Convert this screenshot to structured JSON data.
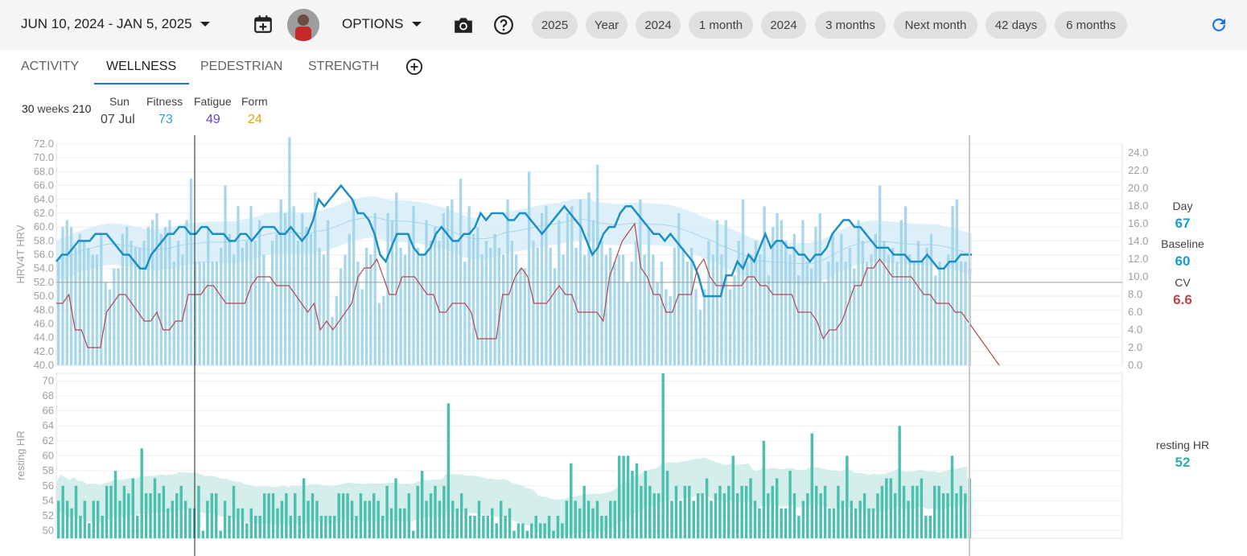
{
  "header": {
    "date_range": "JUN 10, 2024 - JAN 5, 2025",
    "options_label": "OPTIONS",
    "icons": [
      "calendar-add-icon",
      "camera-icon",
      "help-icon",
      "refresh-icon"
    ],
    "chips": [
      "2025",
      "Year",
      "2024",
      "1 month",
      "2024",
      "3 months",
      "Next month",
      "42 days",
      "6 months"
    ],
    "accent_color": "#1a73e8"
  },
  "tabs": {
    "items": [
      "ACTIVITY",
      "WELLNESS",
      "PEDESTRIAN",
      "STRENGTH"
    ],
    "active": "WELLNESS"
  },
  "summary": {
    "weeks_num": "30",
    "weeks_label": "weeks",
    "days": "210",
    "day_name": "Sun",
    "date": "07 Jul",
    "fitness_label": "Fitness",
    "fitness_value": "73",
    "fatigue_label": "Fatigue",
    "fatigue_value": "49",
    "form_label": "Form",
    "form_value": "24",
    "colors": {
      "fitness": "#29a7d9",
      "fatigue": "#6a3fc8",
      "form": "#e0a500"
    }
  },
  "legend": {
    "day_label": "Day",
    "day_value": "67",
    "baseline_label": "Baseline",
    "baseline_value": "60",
    "cv_label": "CV",
    "cv_value": "6.6",
    "rhr_label": "resting HR",
    "rhr_value": "52",
    "colors": {
      "day": "#1a9bc9",
      "baseline": "#1a9bc9",
      "cv": "#b04a4a",
      "rhr": "#2ab3a3"
    }
  },
  "chart_data": [
    {
      "type": "bar",
      "ylabel": "HRV4T HRV",
      "ylim": [
        40,
        72
      ],
      "y_ticks": [
        "40.0",
        "42.0",
        "44.0",
        "46.0",
        "48.0",
        "50.0",
        "52.0",
        "54.0",
        "56.0",
        "58.0",
        "60.0",
        "62.0",
        "64.0",
        "66.0",
        "68.0",
        "70.0",
        "72.0"
      ],
      "y2lim": [
        0,
        24
      ],
      "y2_ticks": [
        "0.0",
        "2.0",
        "4.0",
        "6.0",
        "8.0",
        "10.0",
        "12.0",
        "14.0",
        "16.0",
        "18.0",
        "20.0",
        "22.0",
        "24.0"
      ],
      "grid": true,
      "series": [
        {
          "values": [
            55,
            60,
            61,
            60,
            57,
            59,
            58,
            57,
            56,
            56,
            59,
            52,
            51,
            54,
            54,
            59,
            60,
            58,
            57,
            57,
            58,
            60,
            61,
            62,
            59,
            60,
            61,
            55,
            58,
            56,
            61,
            67,
            55,
            55,
            55,
            60,
            55,
            55,
            57,
            66,
            59,
            56,
            63,
            57,
            58,
            63,
            58,
            61,
            56,
            52,
            58,
            59,
            64,
            62,
            73,
            63,
            58,
            62,
            60,
            59,
            65,
            57,
            56,
            61,
            47,
            50,
            54,
            56,
            59,
            64,
            55,
            51,
            57,
            56,
            62,
            49,
            50,
            62,
            61,
            65,
            57,
            56,
            59,
            63,
            57,
            56,
            61,
            58,
            60,
            58,
            62,
            63,
            64,
            58,
            67,
            55,
            63,
            59,
            60,
            56,
            58,
            57,
            59,
            57,
            56,
            64,
            58,
            56,
            54,
            54,
            68,
            58,
            57,
            62,
            63,
            57,
            54,
            61,
            56,
            62,
            63,
            57,
            64,
            56,
            65,
            61,
            69,
            58,
            56,
            57,
            55,
            56,
            56,
            52,
            55,
            58,
            64,
            56,
            60,
            56,
            52,
            55,
            51,
            50,
            57,
            62,
            57,
            55,
            57,
            51,
            48,
            51,
            58,
            56,
            61,
            56,
            61,
            51,
            53,
            58,
            64,
            55,
            56,
            58,
            56,
            63,
            53,
            60,
            62,
            61,
            58,
            56,
            59,
            53,
            61,
            55,
            54,
            60,
            62,
            52,
            55,
            59,
            55,
            59,
            55,
            57,
            54,
            61,
            58,
            55,
            56,
            59,
            66,
            58,
            56,
            57,
            55,
            61,
            63,
            56,
            55,
            58,
            55,
            57,
            59,
            53,
            55,
            54,
            56,
            63,
            64,
            55,
            55,
            54
          ]
        },
        {
          "values": [
            55,
            56,
            56,
            57,
            58,
            58,
            58,
            59,
            59,
            59,
            58,
            57,
            56,
            56,
            55,
            54,
            54,
            56,
            57,
            58,
            59,
            59,
            60,
            60,
            59,
            59,
            60,
            60,
            59,
            59,
            59,
            58,
            58,
            59,
            59,
            58,
            59,
            60,
            60,
            60,
            59,
            59,
            60,
            59,
            58,
            59,
            61,
            64,
            63,
            64,
            65,
            66,
            65,
            64,
            62,
            62,
            61,
            59,
            56,
            55,
            57,
            59,
            59,
            59,
            57,
            56,
            56,
            57,
            59,
            60,
            59,
            58,
            58,
            59,
            59,
            60,
            62,
            61,
            62,
            62,
            62,
            61,
            61,
            62,
            62,
            61,
            60,
            59,
            60,
            61,
            62,
            63,
            62,
            61,
            60,
            58,
            56,
            57,
            59,
            60,
            60,
            62,
            63,
            63,
            62,
            61,
            60,
            59,
            59,
            58,
            59,
            58,
            57,
            56,
            55,
            53,
            50,
            50,
            50,
            50,
            53,
            53,
            55,
            54,
            56,
            55,
            57,
            59,
            57,
            58,
            58,
            57,
            57,
            56,
            56,
            55,
            56,
            56,
            57,
            59,
            60,
            61,
            61,
            60,
            60,
            59,
            58,
            57,
            57,
            57,
            56,
            56,
            56,
            55,
            55,
            55,
            56,
            55,
            54,
            54,
            55,
            55,
            56,
            56,
            56
          ]
        },
        {
          "values": [
            7,
            7,
            8,
            4,
            4,
            2,
            2,
            2,
            6,
            7,
            8,
            8,
            7,
            6,
            5,
            5,
            6,
            4,
            4,
            5,
            5,
            8,
            8,
            8,
            9,
            9,
            8,
            7,
            7,
            7,
            7,
            9,
            10,
            10,
            10,
            9,
            9,
            9,
            8,
            7,
            6,
            7,
            4,
            5,
            4,
            5,
            6,
            7,
            10,
            11,
            11,
            12,
            10,
            8,
            8,
            10,
            10,
            10,
            9,
            8,
            8,
            6,
            6,
            7,
            7,
            7,
            6,
            3,
            3,
            3,
            3,
            8,
            8,
            10,
            11,
            10,
            7,
            7,
            7,
            8,
            9,
            8,
            8,
            6,
            6,
            6,
            6,
            5,
            10,
            12,
            14,
            15,
            16,
            11,
            10,
            8,
            8,
            6,
            6,
            8,
            8,
            8,
            11,
            12,
            10,
            9,
            9,
            9,
            9,
            9,
            10,
            10,
            9,
            9,
            8,
            8,
            8,
            8,
            6,
            6,
            6,
            5,
            3,
            4,
            4,
            5,
            7,
            9,
            9,
            11,
            11,
            12,
            11,
            10,
            10,
            10,
            10,
            9,
            8,
            8,
            7,
            7,
            7,
            6,
            6,
            5,
            4,
            3,
            2,
            1,
            0
          ]
        }
      ]
    },
    {
      "type": "bar",
      "ylabel": "resting HR",
      "ylim": [
        49,
        71
      ],
      "y_ticks": [
        "50",
        "52",
        "54",
        "56",
        "58",
        "60",
        "62",
        "64",
        "66",
        "68",
        "70"
      ],
      "grid": true,
      "series": [
        {
          "values": [
            54,
            56,
            54,
            53,
            56,
            52,
            54,
            51,
            54,
            54,
            52,
            56,
            56,
            58,
            54,
            56,
            55,
            57,
            52,
            61,
            55,
            55,
            57,
            55,
            56,
            53,
            54,
            55,
            56,
            54,
            53,
            53,
            56,
            50,
            54,
            55,
            55,
            50,
            54,
            52,
            56,
            53,
            53,
            51,
            53,
            52,
            52,
            55,
            55,
            55,
            53,
            54,
            55,
            52,
            55,
            52,
            57,
            54,
            55,
            54,
            52,
            52,
            52,
            52,
            55,
            55,
            55,
            54,
            52,
            55,
            54,
            54,
            55,
            54,
            52,
            56,
            53,
            57,
            53,
            53,
            55,
            50,
            56,
            58,
            54,
            55,
            56,
            54,
            56,
            67,
            54,
            53,
            55,
            53,
            52,
            52,
            54,
            52,
            52,
            53,
            51,
            54,
            52,
            53,
            50,
            51,
            51,
            50,
            51,
            52,
            51,
            51,
            52,
            50,
            52,
            51,
            54,
            59,
            54,
            53,
            56,
            54,
            53,
            54,
            52,
            52,
            54,
            54,
            60,
            60,
            60,
            58,
            59,
            56,
            58,
            56,
            55,
            55,
            71,
            58,
            54,
            56,
            54,
            56,
            56,
            54,
            55,
            55,
            57,
            54,
            55,
            56,
            55,
            56,
            60,
            55,
            56,
            56,
            57,
            54,
            53,
            62,
            55,
            56,
            57,
            53,
            53,
            58,
            55,
            52,
            54,
            55,
            63,
            56,
            55,
            56,
            53,
            53,
            56,
            54,
            60,
            54,
            53,
            54,
            55,
            53,
            53,
            55,
            56,
            57,
            57,
            55,
            64,
            56,
            54,
            56,
            56,
            57,
            52,
            52,
            56,
            56,
            55,
            55,
            60,
            55,
            56,
            55,
            57
          ]
        }
      ]
    }
  ]
}
